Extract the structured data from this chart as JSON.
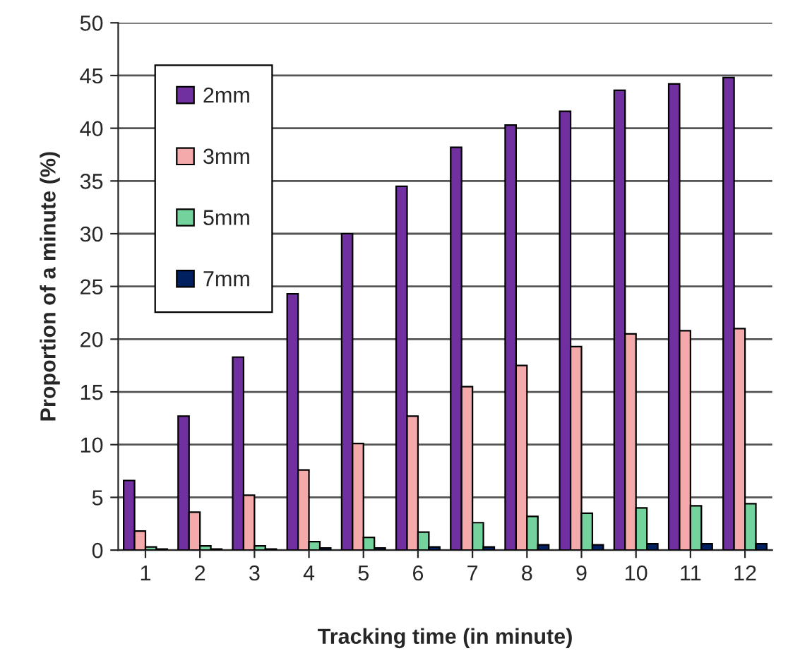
{
  "chart_data": {
    "type": "bar",
    "xlabel": "Tracking time (in minute)",
    "ylabel": "Proportion of a minute (%)",
    "categories": [
      "1",
      "2",
      "3",
      "4",
      "5",
      "6",
      "7",
      "8",
      "9",
      "10",
      "11",
      "12"
    ],
    "series": [
      {
        "name": "2mm",
        "color": "#7030a0",
        "values": [
          6.6,
          12.7,
          18.3,
          24.3,
          30.0,
          34.5,
          38.2,
          40.3,
          41.6,
          43.6,
          44.2,
          44.8
        ]
      },
      {
        "name": "3mm",
        "color": "#f4aaaa",
        "values": [
          1.8,
          3.6,
          5.2,
          7.6,
          10.1,
          12.7,
          15.5,
          17.5,
          19.3,
          20.5,
          20.8,
          21.0
        ]
      },
      {
        "name": "5mm",
        "color": "#74d39c",
        "values": [
          0.3,
          0.4,
          0.4,
          0.8,
          1.2,
          1.7,
          2.6,
          3.2,
          3.5,
          4.0,
          4.2,
          4.4
        ]
      },
      {
        "name": "7mm",
        "color": "#002060",
        "values": [
          0.1,
          0.1,
          0.1,
          0.2,
          0.2,
          0.3,
          0.3,
          0.5,
          0.5,
          0.6,
          0.6,
          0.6
        ]
      }
    ],
    "ylim": [
      0,
      50
    ],
    "yticks": [
      0,
      5,
      10,
      15,
      20,
      25,
      30,
      35,
      40,
      45,
      50
    ],
    "grid": "y",
    "legend": "top left"
  }
}
